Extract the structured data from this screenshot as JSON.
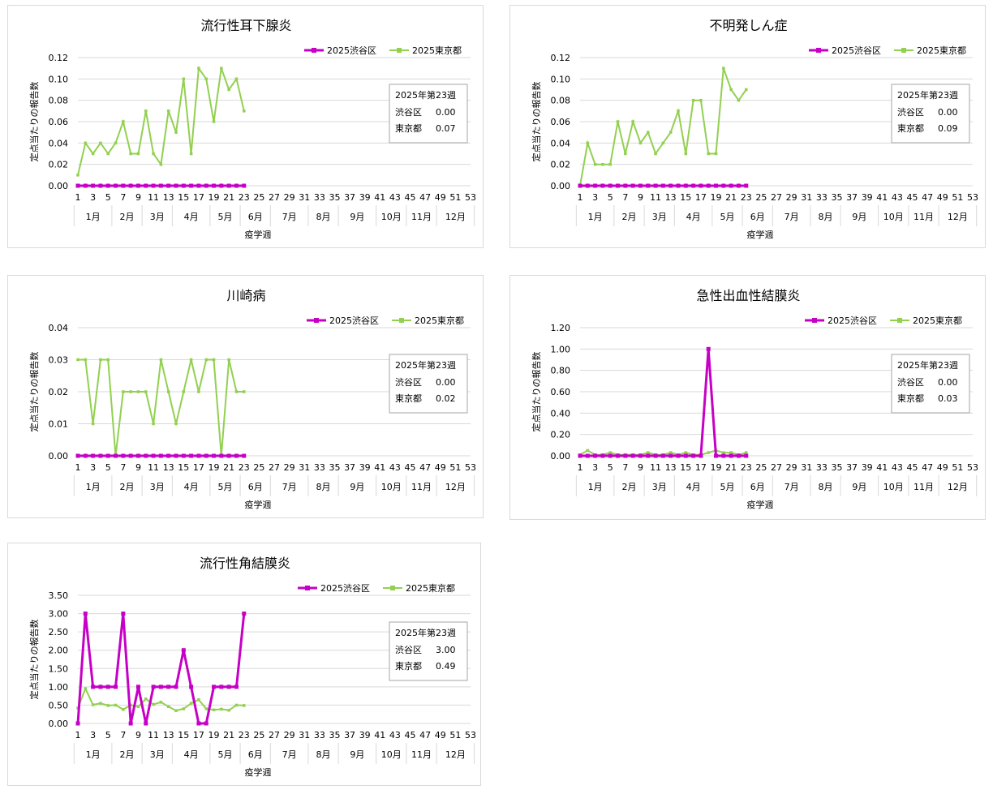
{
  "colors": {
    "shibuya": "#c600c6",
    "tokyo": "#92d050",
    "grid": "#d9d9d9",
    "axis": "#bfbfbf",
    "border": "#d9d9d9"
  },
  "x_axis": {
    "label": "疫学週",
    "week_ticks": [
      "1",
      "3",
      "5",
      "7",
      "9",
      "11",
      "13",
      "15",
      "17",
      "19",
      "21",
      "23",
      "25",
      "27",
      "29",
      "31",
      "33",
      "35",
      "37",
      "39",
      "41",
      "43",
      "45",
      "47",
      "49",
      "51",
      "53"
    ],
    "months": [
      "1月",
      "2月",
      "3月",
      "4月",
      "5月",
      "6月",
      "7月",
      "8月",
      "9月",
      "10月",
      "11月",
      "12月"
    ]
  },
  "chart_data": [
    {
      "type": "line",
      "title": "流行性耳下腺炎",
      "ylabel": "定点当たりの報告数",
      "xlabel": "疫学週",
      "ylim": [
        0,
        0.12
      ],
      "y_ticks": [
        "0.00",
        "0.02",
        "0.04",
        "0.06",
        "0.08",
        "0.10",
        "0.12"
      ],
      "x": [
        1,
        2,
        3,
        4,
        5,
        6,
        7,
        8,
        9,
        10,
        11,
        12,
        13,
        14,
        15,
        16,
        17,
        18,
        19,
        20,
        21,
        22,
        23
      ],
      "series": [
        {
          "name": "2025渋谷区",
          "values": [
            0,
            0,
            0,
            0,
            0,
            0,
            0,
            0,
            0,
            0,
            0,
            0,
            0,
            0,
            0,
            0,
            0,
            0,
            0,
            0,
            0,
            0,
            0
          ]
        },
        {
          "name": "2025東京都",
          "values": [
            0.01,
            0.04,
            0.03,
            0.04,
            0.03,
            0.04,
            0.06,
            0.03,
            0.03,
            0.07,
            0.03,
            0.02,
            0.07,
            0.05,
            0.1,
            0.03,
            0.11,
            0.1,
            0.06,
            0.11,
            0.09,
            0.1,
            0.07
          ]
        }
      ],
      "info_box": {
        "header": "2025年第23週",
        "rows": [
          {
            "label": "渋谷区",
            "value": "0.00"
          },
          {
            "label": "東京都",
            "value": "0.07"
          }
        ]
      }
    },
    {
      "type": "line",
      "title": "不明発しん症",
      "ylabel": "定点当たりの報告数",
      "xlabel": "疫学週",
      "ylim": [
        0,
        0.12
      ],
      "y_ticks": [
        "0.00",
        "0.02",
        "0.04",
        "0.06",
        "0.08",
        "0.10",
        "0.12"
      ],
      "x": [
        1,
        2,
        3,
        4,
        5,
        6,
        7,
        8,
        9,
        10,
        11,
        12,
        13,
        14,
        15,
        16,
        17,
        18,
        19,
        20,
        21,
        22,
        23
      ],
      "series": [
        {
          "name": "2025渋谷区",
          "values": [
            0,
            0,
            0,
            0,
            0,
            0,
            0,
            0,
            0,
            0,
            0,
            0,
            0,
            0,
            0,
            0,
            0,
            0,
            0,
            0,
            0,
            0,
            0
          ]
        },
        {
          "name": "2025東京都",
          "values": [
            0.0,
            0.04,
            0.02,
            0.02,
            0.02,
            0.06,
            0.03,
            0.06,
            0.04,
            0.05,
            0.03,
            0.04,
            0.05,
            0.07,
            0.03,
            0.08,
            0.08,
            0.03,
            0.03,
            0.11,
            0.09,
            0.08,
            0.09
          ]
        }
      ],
      "info_box": {
        "header": "2025年第23週",
        "rows": [
          {
            "label": "渋谷区",
            "value": "0.00"
          },
          {
            "label": "東京都",
            "value": "0.09"
          }
        ]
      }
    },
    {
      "type": "line",
      "title": "川崎病",
      "ylabel": "定点当たりの報告数",
      "xlabel": "疫学週",
      "ylim": [
        0,
        0.04
      ],
      "y_ticks": [
        "0.00",
        "0.01",
        "0.02",
        "0.03",
        "0.04"
      ],
      "x": [
        1,
        2,
        3,
        4,
        5,
        6,
        7,
        8,
        9,
        10,
        11,
        12,
        13,
        14,
        15,
        16,
        17,
        18,
        19,
        20,
        21,
        22,
        23
      ],
      "series": [
        {
          "name": "2025渋谷区",
          "values": [
            0,
            0,
            0,
            0,
            0,
            0,
            0,
            0,
            0,
            0,
            0,
            0,
            0,
            0,
            0,
            0,
            0,
            0,
            0,
            0,
            0,
            0,
            0
          ]
        },
        {
          "name": "2025東京都",
          "values": [
            0.03,
            0.03,
            0.01,
            0.03,
            0.03,
            0.0,
            0.02,
            0.02,
            0.02,
            0.02,
            0.01,
            0.03,
            0.02,
            0.01,
            0.02,
            0.03,
            0.02,
            0.03,
            0.03,
            0.0,
            0.03,
            0.02,
            0.02
          ]
        }
      ],
      "info_box": {
        "header": "2025年第23週",
        "rows": [
          {
            "label": "渋谷区",
            "value": "0.00"
          },
          {
            "label": "東京都",
            "value": "0.02"
          }
        ]
      }
    },
    {
      "type": "line",
      "title": "急性出血性結膜炎",
      "ylabel": "定点当たりの報告数",
      "xlabel": "疫学週",
      "ylim": [
        0,
        1.2
      ],
      "y_ticks": [
        "0.00",
        "0.20",
        "0.40",
        "0.60",
        "0.80",
        "1.00",
        "1.20"
      ],
      "x": [
        1,
        2,
        3,
        4,
        5,
        6,
        7,
        8,
        9,
        10,
        11,
        12,
        13,
        14,
        15,
        16,
        17,
        18,
        19,
        20,
        21,
        22,
        23
      ],
      "series": [
        {
          "name": "2025渋谷区",
          "values": [
            0,
            0,
            0,
            0,
            0,
            0,
            0,
            0,
            0,
            0,
            0,
            0,
            0,
            0,
            0,
            0,
            0,
            1.0,
            0,
            0,
            0,
            0,
            0
          ]
        },
        {
          "name": "2025東京都",
          "values": [
            0.01,
            0.05,
            0.01,
            0.01,
            0.03,
            0.01,
            0.01,
            0.01,
            0.01,
            0.03,
            0.01,
            0.01,
            0.03,
            0.01,
            0.03,
            0.01,
            0.01,
            0.03,
            0.05,
            0.03,
            0.03,
            0.01,
            0.03
          ]
        }
      ],
      "info_box": {
        "header": "2025年第23週",
        "rows": [
          {
            "label": "渋谷区",
            "value": "0.00"
          },
          {
            "label": "東京都",
            "value": "0.03"
          }
        ]
      }
    },
    {
      "type": "line",
      "title": "流行性角結膜炎",
      "ylabel": "定点当たりの報告数",
      "xlabel": "疫学週",
      "ylim": [
        0,
        3.5
      ],
      "y_ticks": [
        "0.00",
        "0.50",
        "1.00",
        "1.50",
        "2.00",
        "2.50",
        "3.00",
        "3.50"
      ],
      "x": [
        1,
        2,
        3,
        4,
        5,
        6,
        7,
        8,
        9,
        10,
        11,
        12,
        13,
        14,
        15,
        16,
        17,
        18,
        19,
        20,
        21,
        22,
        23
      ],
      "series": [
        {
          "name": "2025渋谷区",
          "values": [
            0,
            3,
            1,
            1,
            1,
            1,
            3,
            0,
            1,
            0,
            1,
            1,
            1,
            1,
            2,
            1,
            0,
            0,
            1,
            1,
            1,
            1,
            3
          ]
        },
        {
          "name": "2025東京都",
          "values": [
            0.42,
            0.95,
            0.51,
            0.55,
            0.49,
            0.5,
            0.38,
            0.5,
            0.46,
            0.67,
            0.52,
            0.58,
            0.46,
            0.35,
            0.4,
            0.55,
            0.65,
            0.4,
            0.37,
            0.39,
            0.36,
            0.5,
            0.49
          ]
        }
      ],
      "info_box": {
        "header": "2025年第23週",
        "rows": [
          {
            "label": "渋谷区",
            "value": "3.00"
          },
          {
            "label": "東京都",
            "value": "0.49"
          }
        ]
      }
    }
  ]
}
